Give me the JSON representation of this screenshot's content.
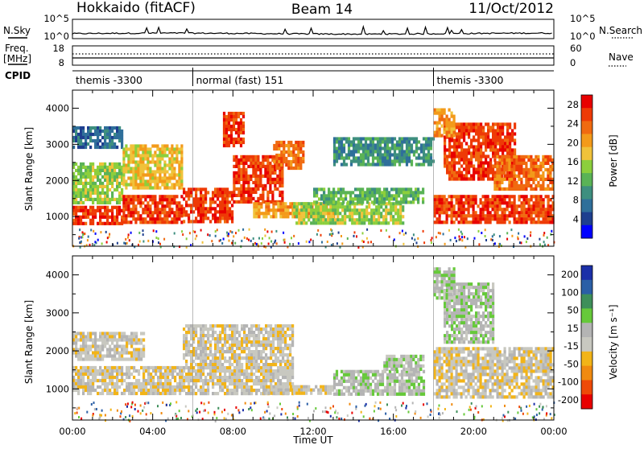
{
  "header": {
    "station": "Hokkaido (fitACF)",
    "beam": "Beam 14",
    "date": "11/Oct/2012"
  },
  "top_panels": {
    "nsky_label": "N.Sky",
    "nsky_ticks": [
      "10^5",
      "10^0"
    ],
    "nsearch_label": "N.Search",
    "nsearch_ticks": [
      "10^5",
      "10^0"
    ],
    "freq_label_1": "Freq.",
    "freq_label_2": "[MHz]",
    "freq_ticks": [
      "18",
      "8"
    ],
    "nave_label": "Nave",
    "nave_ticks": [
      "60",
      "0"
    ],
    "cpid_label": "CPID",
    "cpid_segments": [
      {
        "start_h": 0,
        "end_h": 6,
        "label": "themis -3300"
      },
      {
        "start_h": 6,
        "end_h": 18,
        "label": "normal (fast) 151"
      },
      {
        "start_h": 18,
        "end_h": 24,
        "label": "themis -3300"
      }
    ]
  },
  "colors": {
    "power": [
      "#0000ff",
      "#1e3f8f",
      "#2f6f9a",
      "#3e8f7f",
      "#5ab356",
      "#8ccf3c",
      "#f0c23a",
      "#f39a1a",
      "#f06a10",
      "#ee3a06",
      "#e80000"
    ],
    "velocity": [
      "#1b2fa8",
      "#2b5fa6",
      "#3e8f5a",
      "#66c93a",
      "#b4b4b4",
      "#c8c8c0",
      "#f2b418",
      "#f08a10",
      "#ee4a08",
      "#e80000"
    ]
  },
  "chart_data": [
    {
      "type": "heatmap",
      "title": "",
      "xlabel": "",
      "ylabel": "Slant Range [km]",
      "xlim": [
        0,
        24
      ],
      "ylim": [
        180,
        4500
      ],
      "x_tick_labels": [],
      "y_ticks": [
        1000,
        2000,
        3000,
        4000
      ],
      "y_tick_labels": [
        "1000",
        "2000",
        "3000",
        "4000"
      ],
      "colorbar": {
        "label": "Power [dB]",
        "range": [
          0,
          30
        ],
        "ticks": [
          4,
          8,
          12,
          16,
          20,
          24,
          28
        ],
        "tick_labels": [
          "4",
          "8",
          "12",
          "16",
          "20",
          "24",
          "28"
        ]
      },
      "echo_regions": [
        {
          "t0": 0.0,
          "t1": 2.5,
          "r0": 800,
          "r1": 1300,
          "power": 28
        },
        {
          "t0": 0.0,
          "t1": 2.5,
          "r0": 1400,
          "r1": 2500,
          "power": 14
        },
        {
          "t0": 0.0,
          "t1": 2.5,
          "r0": 2900,
          "r1": 3500,
          "power": 6
        },
        {
          "t0": 2.5,
          "t1": 5.5,
          "r0": 850,
          "r1": 1600,
          "power": 26
        },
        {
          "t0": 2.5,
          "t1": 5.5,
          "r0": 1800,
          "r1": 3000,
          "power": 18
        },
        {
          "t0": 5.5,
          "t1": 8.0,
          "r0": 850,
          "r1": 1800,
          "power": 28
        },
        {
          "t0": 7.5,
          "t1": 8.5,
          "r0": 3000,
          "r1": 3900,
          "power": 26
        },
        {
          "t0": 8.0,
          "t1": 10.5,
          "r0": 1400,
          "r1": 2700,
          "power": 26
        },
        {
          "t0": 10.0,
          "t1": 11.5,
          "r0": 2300,
          "r1": 3100,
          "power": 24
        },
        {
          "t0": 9.0,
          "t1": 13.0,
          "r0": 1000,
          "r1": 1400,
          "power": 22
        },
        {
          "t0": 11.0,
          "t1": 16.5,
          "r0": 850,
          "r1": 1400,
          "power": 16
        },
        {
          "t0": 12.0,
          "t1": 17.5,
          "r0": 1400,
          "r1": 1800,
          "power": 12
        },
        {
          "t0": 13.0,
          "t1": 18.0,
          "r0": 2400,
          "r1": 3200,
          "power": 10
        },
        {
          "t0": 18.0,
          "t1": 24.0,
          "r0": 800,
          "r1": 1600,
          "power": 28
        },
        {
          "t0": 18.5,
          "t1": 22.0,
          "r0": 2000,
          "r1": 3600,
          "power": 26
        },
        {
          "t0": 18.0,
          "t1": 19.0,
          "r0": 3200,
          "r1": 4000,
          "power": 22
        },
        {
          "t0": 21.0,
          "t1": 24.0,
          "r0": 1800,
          "r1": 2700,
          "power": 24
        }
      ]
    },
    {
      "type": "heatmap",
      "title": "",
      "xlabel": "Time UT",
      "ylabel": "Slant Range [km]",
      "xlim": [
        0,
        24
      ],
      "ylim": [
        180,
        4500
      ],
      "x_ticks": [
        0,
        4,
        8,
        12,
        16,
        20,
        24
      ],
      "x_tick_labels": [
        "00:00",
        "04:00",
        "08:00",
        "12:00",
        "16:00",
        "20:00",
        "00:00"
      ],
      "y_ticks": [
        1000,
        2000,
        3000,
        4000
      ],
      "y_tick_labels": [
        "1000",
        "2000",
        "3000",
        "4000"
      ],
      "colorbar": {
        "label": "Velocity [m s⁻¹]",
        "range": [
          -250,
          250
        ],
        "ticks": [
          200,
          100,
          50,
          15,
          -15,
          -50,
          -100,
          -200
        ],
        "tick_labels": [
          "200",
          "100",
          "50",
          "15",
          "-15",
          "-50",
          "-100",
          "-200"
        ]
      },
      "echo_regions": [
        {
          "t0": 0.0,
          "t1": 5.5,
          "r0": 850,
          "r1": 1600,
          "velocity": 0
        },
        {
          "t0": 0.0,
          "t1": 3.5,
          "r0": 1800,
          "r1": 2500,
          "velocity": 0
        },
        {
          "t0": 5.5,
          "t1": 11.0,
          "r0": 900,
          "r1": 2700,
          "velocity": -5
        },
        {
          "t0": 9.5,
          "t1": 11.0,
          "r0": 900,
          "r1": 1100,
          "velocity": -40
        },
        {
          "t0": 11.0,
          "t1": 13.0,
          "r0": 850,
          "r1": 1100,
          "velocity": -40
        },
        {
          "t0": 13.0,
          "t1": 17.5,
          "r0": 850,
          "r1": 1500,
          "velocity": 40
        },
        {
          "t0": 15.5,
          "t1": 17.5,
          "r0": 1500,
          "r1": 1900,
          "velocity": 40
        },
        {
          "t0": 18.0,
          "t1": 24.0,
          "r0": 800,
          "r1": 2100,
          "velocity": 0
        },
        {
          "t0": 18.5,
          "t1": 21.0,
          "r0": 2200,
          "r1": 3800,
          "velocity": 40
        },
        {
          "t0": 18.0,
          "t1": 19.0,
          "r0": 3400,
          "r1": 4200,
          "velocity": 40
        }
      ]
    }
  ]
}
